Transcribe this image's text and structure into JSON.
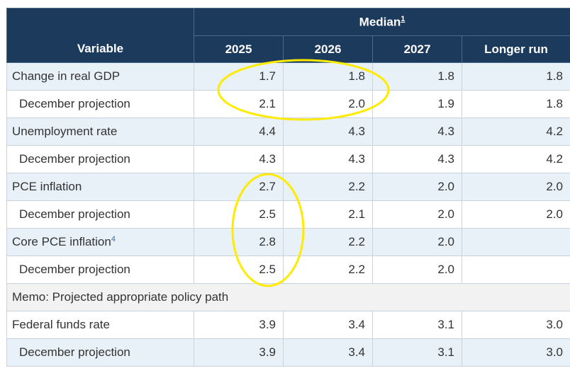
{
  "header": {
    "median_label": "Median",
    "median_footnote": "1",
    "variable_label": "Variable",
    "columns": [
      "2025",
      "2026",
      "2027",
      "Longer run"
    ]
  },
  "rows": [
    {
      "label": "Change in real GDP",
      "footnote": "",
      "values": [
        "1.7",
        "1.8",
        "1.8",
        "1.8"
      ]
    },
    {
      "label": "December projection",
      "footnote": "",
      "values": [
        "2.1",
        "2.0",
        "1.9",
        "1.8"
      ]
    },
    {
      "label": "Unemployment rate",
      "footnote": "",
      "values": [
        "4.4",
        "4.3",
        "4.3",
        "4.2"
      ]
    },
    {
      "label": "December projection",
      "footnote": "",
      "values": [
        "4.3",
        "4.3",
        "4.3",
        "4.2"
      ]
    },
    {
      "label": "PCE inflation",
      "footnote": "",
      "values": [
        "2.7",
        "2.2",
        "2.0",
        "2.0"
      ]
    },
    {
      "label": "December projection",
      "footnote": "",
      "values": [
        "2.5",
        "2.1",
        "2.0",
        "2.0"
      ]
    },
    {
      "label": "Core PCE inflation",
      "footnote": "4",
      "values": [
        "2.8",
        "2.2",
        "2.0",
        ""
      ]
    },
    {
      "label": "December projection",
      "footnote": "",
      "values": [
        "2.5",
        "2.2",
        "2.0",
        ""
      ]
    }
  ],
  "memo": {
    "label": "Memo: Projected appropriate policy path"
  },
  "policy_rows": [
    {
      "label": "Federal funds rate",
      "values": [
        "3.9",
        "3.4",
        "3.1",
        "3.0"
      ]
    },
    {
      "label": "December projection",
      "values": [
        "3.9",
        "3.4",
        "3.1",
        "3.0"
      ]
    }
  ],
  "annotations": {
    "color": "#ffeb00"
  }
}
